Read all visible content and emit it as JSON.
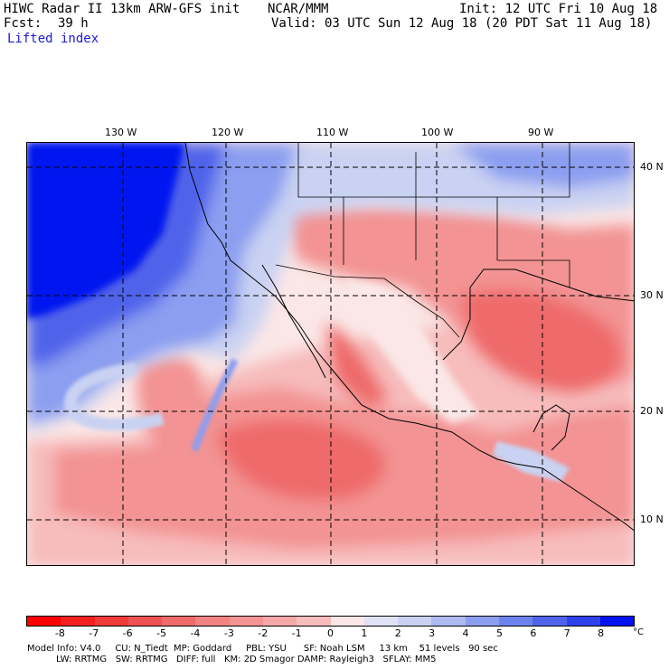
{
  "header": {
    "title": "HIWC Radar II 13km ARW-GFS init",
    "source": "NCAR/MMM",
    "init": "Init: 12 UTC Fri 10 Aug 18",
    "fcst_label": "Fcst:",
    "fcst_value": "39 h",
    "valid": "Valid: 03 UTC Sun 12 Aug 18 (20 PDT Sat 11 Aug 18)",
    "field": "Lifted index"
  },
  "map": {
    "longitude_labels": [
      "130 W",
      "120 W",
      "110 W",
      "100 W",
      "90 W"
    ],
    "latitude_labels": [
      "40 N",
      "30 N",
      "20 N",
      "10 N"
    ],
    "colors": {
      "deep_negative": "#ff0000",
      "strong_negative": "#ef6a6a",
      "moderate_negative": "#f39393",
      "weak_negative": "#f7bcbc",
      "near_zero": "#fbe7e7",
      "weak_positive": "#c9d2f2",
      "moderate_positive": "#8b9ef0",
      "strong_positive": "#4f63ea",
      "deep_positive": "#0012f0",
      "grid": "#000000"
    }
  },
  "colorbar": {
    "labels": [
      "-8",
      "-7",
      "-6",
      "-5",
      "-4",
      "-3",
      "-2",
      "-1",
      "0",
      "1",
      "2",
      "3",
      "4",
      "5",
      "6",
      "7",
      "8"
    ],
    "unit": "°C",
    "colors": [
      "#ff0000",
      "#f42020",
      "#f03a3a",
      "#ef5252",
      "#ef6a6a",
      "#f08282",
      "#f39393",
      "#f5a8a8",
      "#f7bcbc",
      "#fbe7e7",
      "#dfe3f6",
      "#c9d2f2",
      "#aebbf0",
      "#8b9ef0",
      "#6c82ee",
      "#4f63ea",
      "#2e42ec",
      "#0012f0"
    ]
  },
  "footer": {
    "line1": "Model Info: V4.0     CU: N_Tiedt  MP: Goddard     PBL: YSU      SF: Noah LSM     13 km    51 levels   90 sec",
    "line2": "LW: RRTMG   SW: RRTMG   DIFF: full   KM: 2D Smagor DAMP: Rayleigh3   SFLAY: MM5"
  }
}
